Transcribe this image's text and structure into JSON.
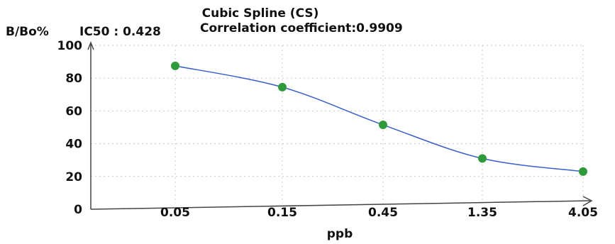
{
  "chart_data": {
    "type": "line",
    "title": "Cubic Spline (CS)",
    "ylabel": "B/Bo%",
    "ic50_text": "IC50 : 0.428",
    "correlation_text": "Correlation coefficient:0.9909",
    "xlabel": "ppb",
    "categories": [
      "0.05",
      "0.15",
      "0.45",
      "1.35",
      "4.05"
    ],
    "x": [
      0.05,
      0.15,
      0.45,
      1.35,
      4.05
    ],
    "values": [
      87.5,
      74.5,
      51.5,
      31.0,
      23.0
    ],
    "yticks": [
      "0",
      "20",
      "40",
      "60",
      "80",
      "100"
    ],
    "ylim": [
      0,
      100
    ],
    "grid": true,
    "line_color": "#3a5fcd",
    "point_color": "#2e9b3a"
  }
}
